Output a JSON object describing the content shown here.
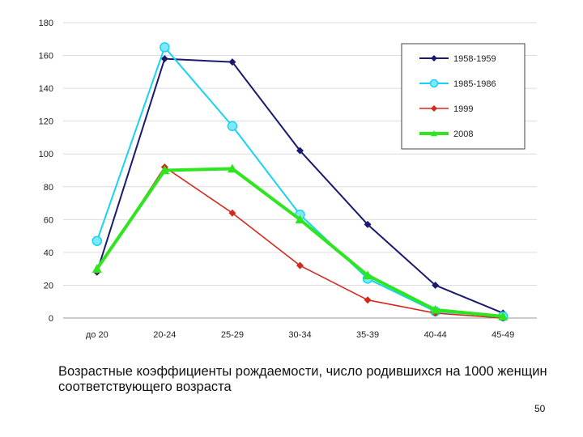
{
  "caption": "Возрастные коэффициенты рождаемости, число родившихся на 1000 женщин соответствующего возраста",
  "page_number": "50",
  "chart_data": {
    "type": "line",
    "title": "",
    "xlabel": "",
    "ylabel": "",
    "categories": [
      "до 20",
      "20-24",
      "25-29",
      "30-34",
      "35-39",
      "40-44",
      "45-49"
    ],
    "ylim": [
      0,
      180
    ],
    "yticks": [
      0,
      20,
      40,
      60,
      80,
      100,
      120,
      140,
      160,
      180
    ],
    "grid": true,
    "legend_position": "top-right",
    "series": [
      {
        "name": "1958-1959",
        "color": "#1a1a6e",
        "marker": "diamond",
        "values": [
          28,
          158,
          156,
          102,
          57,
          20,
          3
        ]
      },
      {
        "name": "1985-1986",
        "color": "#19d3f0",
        "marker": "circle",
        "values": [
          47,
          165,
          117,
          63,
          24,
          4,
          1
        ]
      },
      {
        "name": "1999",
        "color": "#d42a1e",
        "marker": "diamond",
        "values": [
          29,
          92,
          64,
          32,
          11,
          3,
          0
        ]
      },
      {
        "name": "2008",
        "color": "#2ee620",
        "marker": "triangle",
        "values": [
          30,
          90,
          91,
          60,
          26,
          5,
          1
        ]
      }
    ]
  }
}
